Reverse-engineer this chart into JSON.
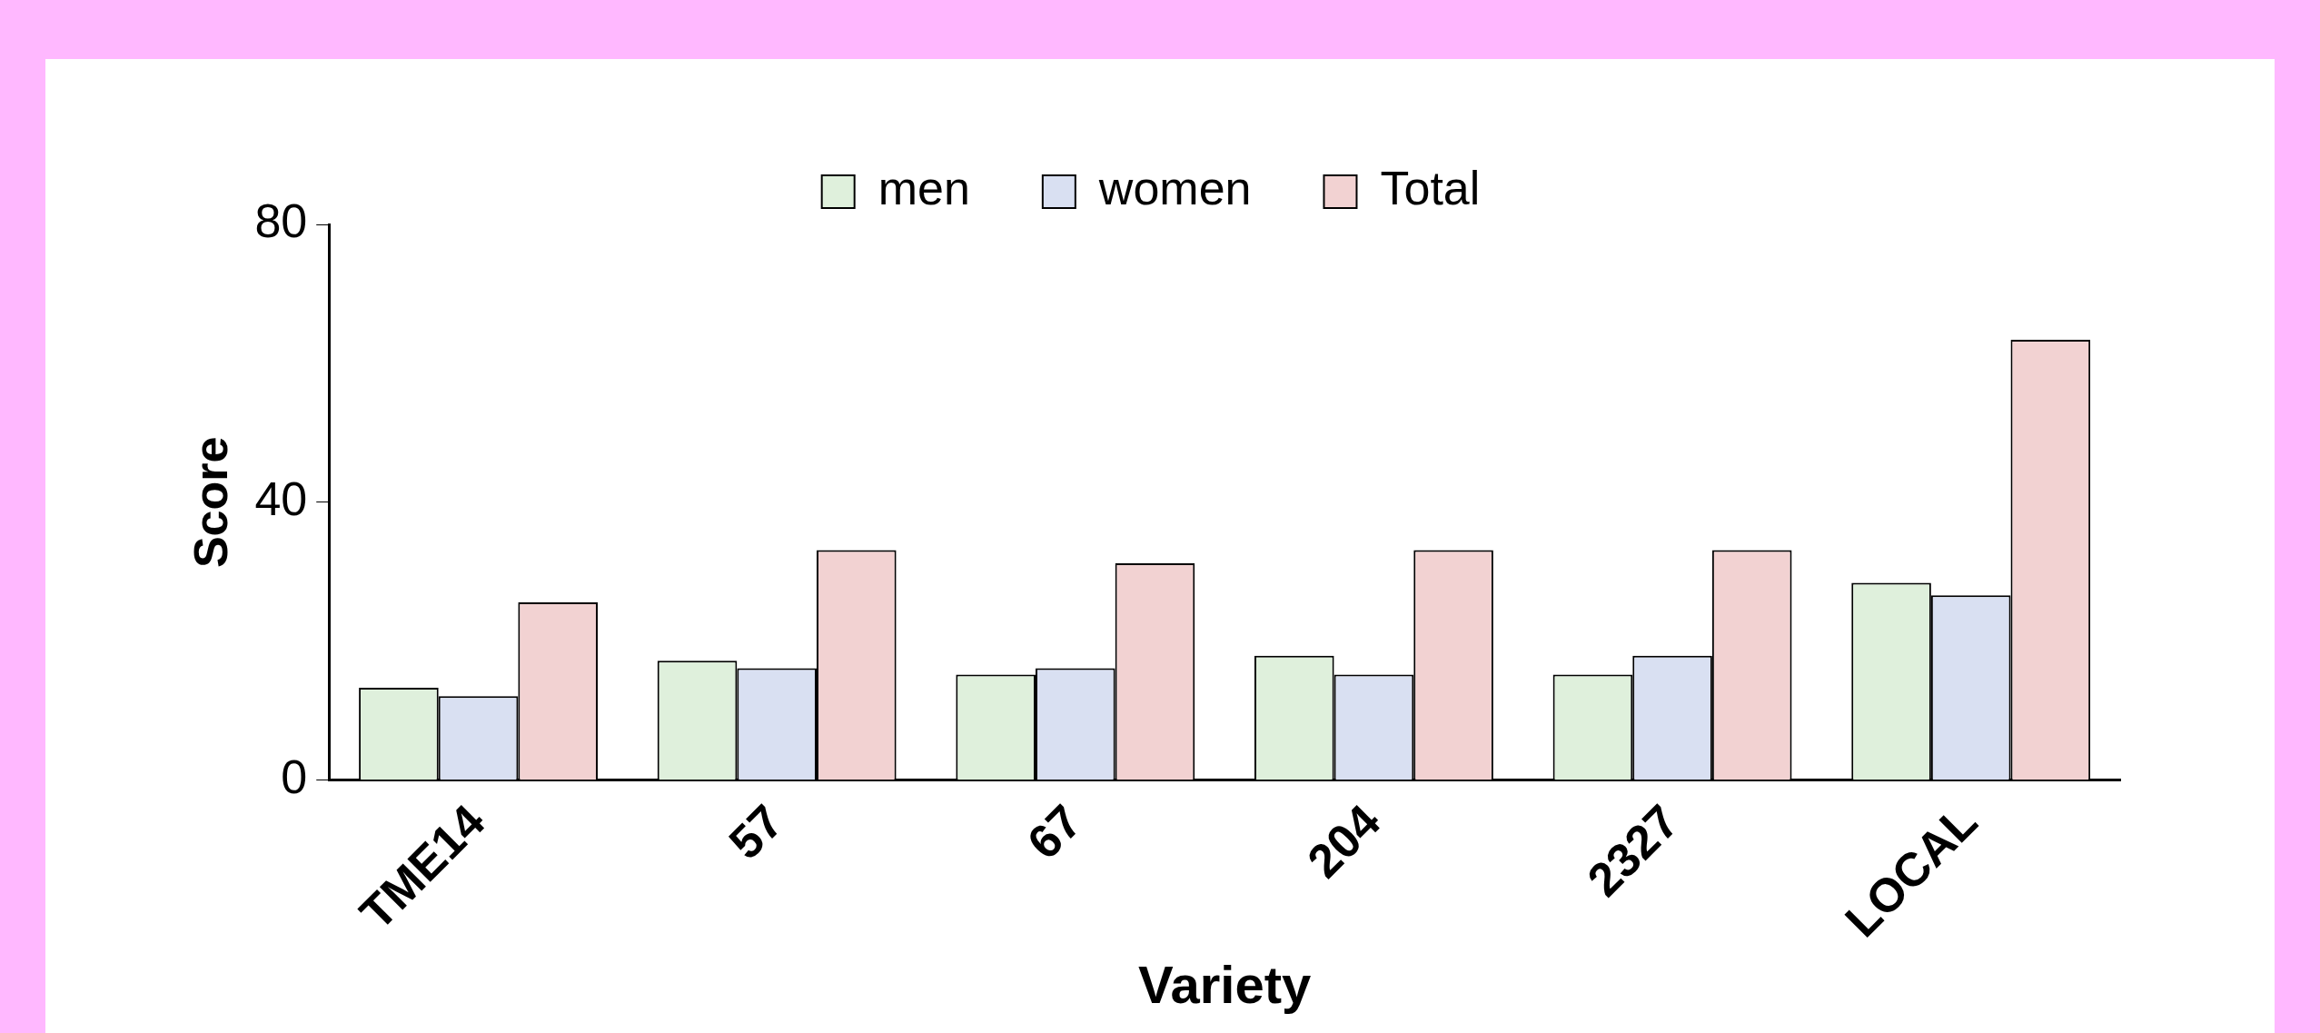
{
  "chart_data": {
    "type": "bar",
    "xlabel": "Variety",
    "ylabel": "Score",
    "categories": [
      "TME14",
      "57",
      "67",
      "204",
      "2327",
      "LOCAL"
    ],
    "series": [
      {
        "name": "men",
        "color": "#dff0dc",
        "values": [
          13.3,
          17.2,
          15.2,
          17.9,
          15.2,
          28.4
        ]
      },
      {
        "name": "women",
        "color": "#d9e0f2",
        "values": [
          12.1,
          16.1,
          16.1,
          15.2,
          17.9,
          26.6
        ]
      },
      {
        "name": "Total",
        "color": "#f2d2d2",
        "values": [
          25.6,
          33.1,
          31.2,
          33.1,
          33.1,
          63.4
        ]
      }
    ],
    "ylim": [
      0,
      80
    ],
    "yticks": [
      0,
      40,
      80
    ],
    "grid": false,
    "legend": "top"
  }
}
